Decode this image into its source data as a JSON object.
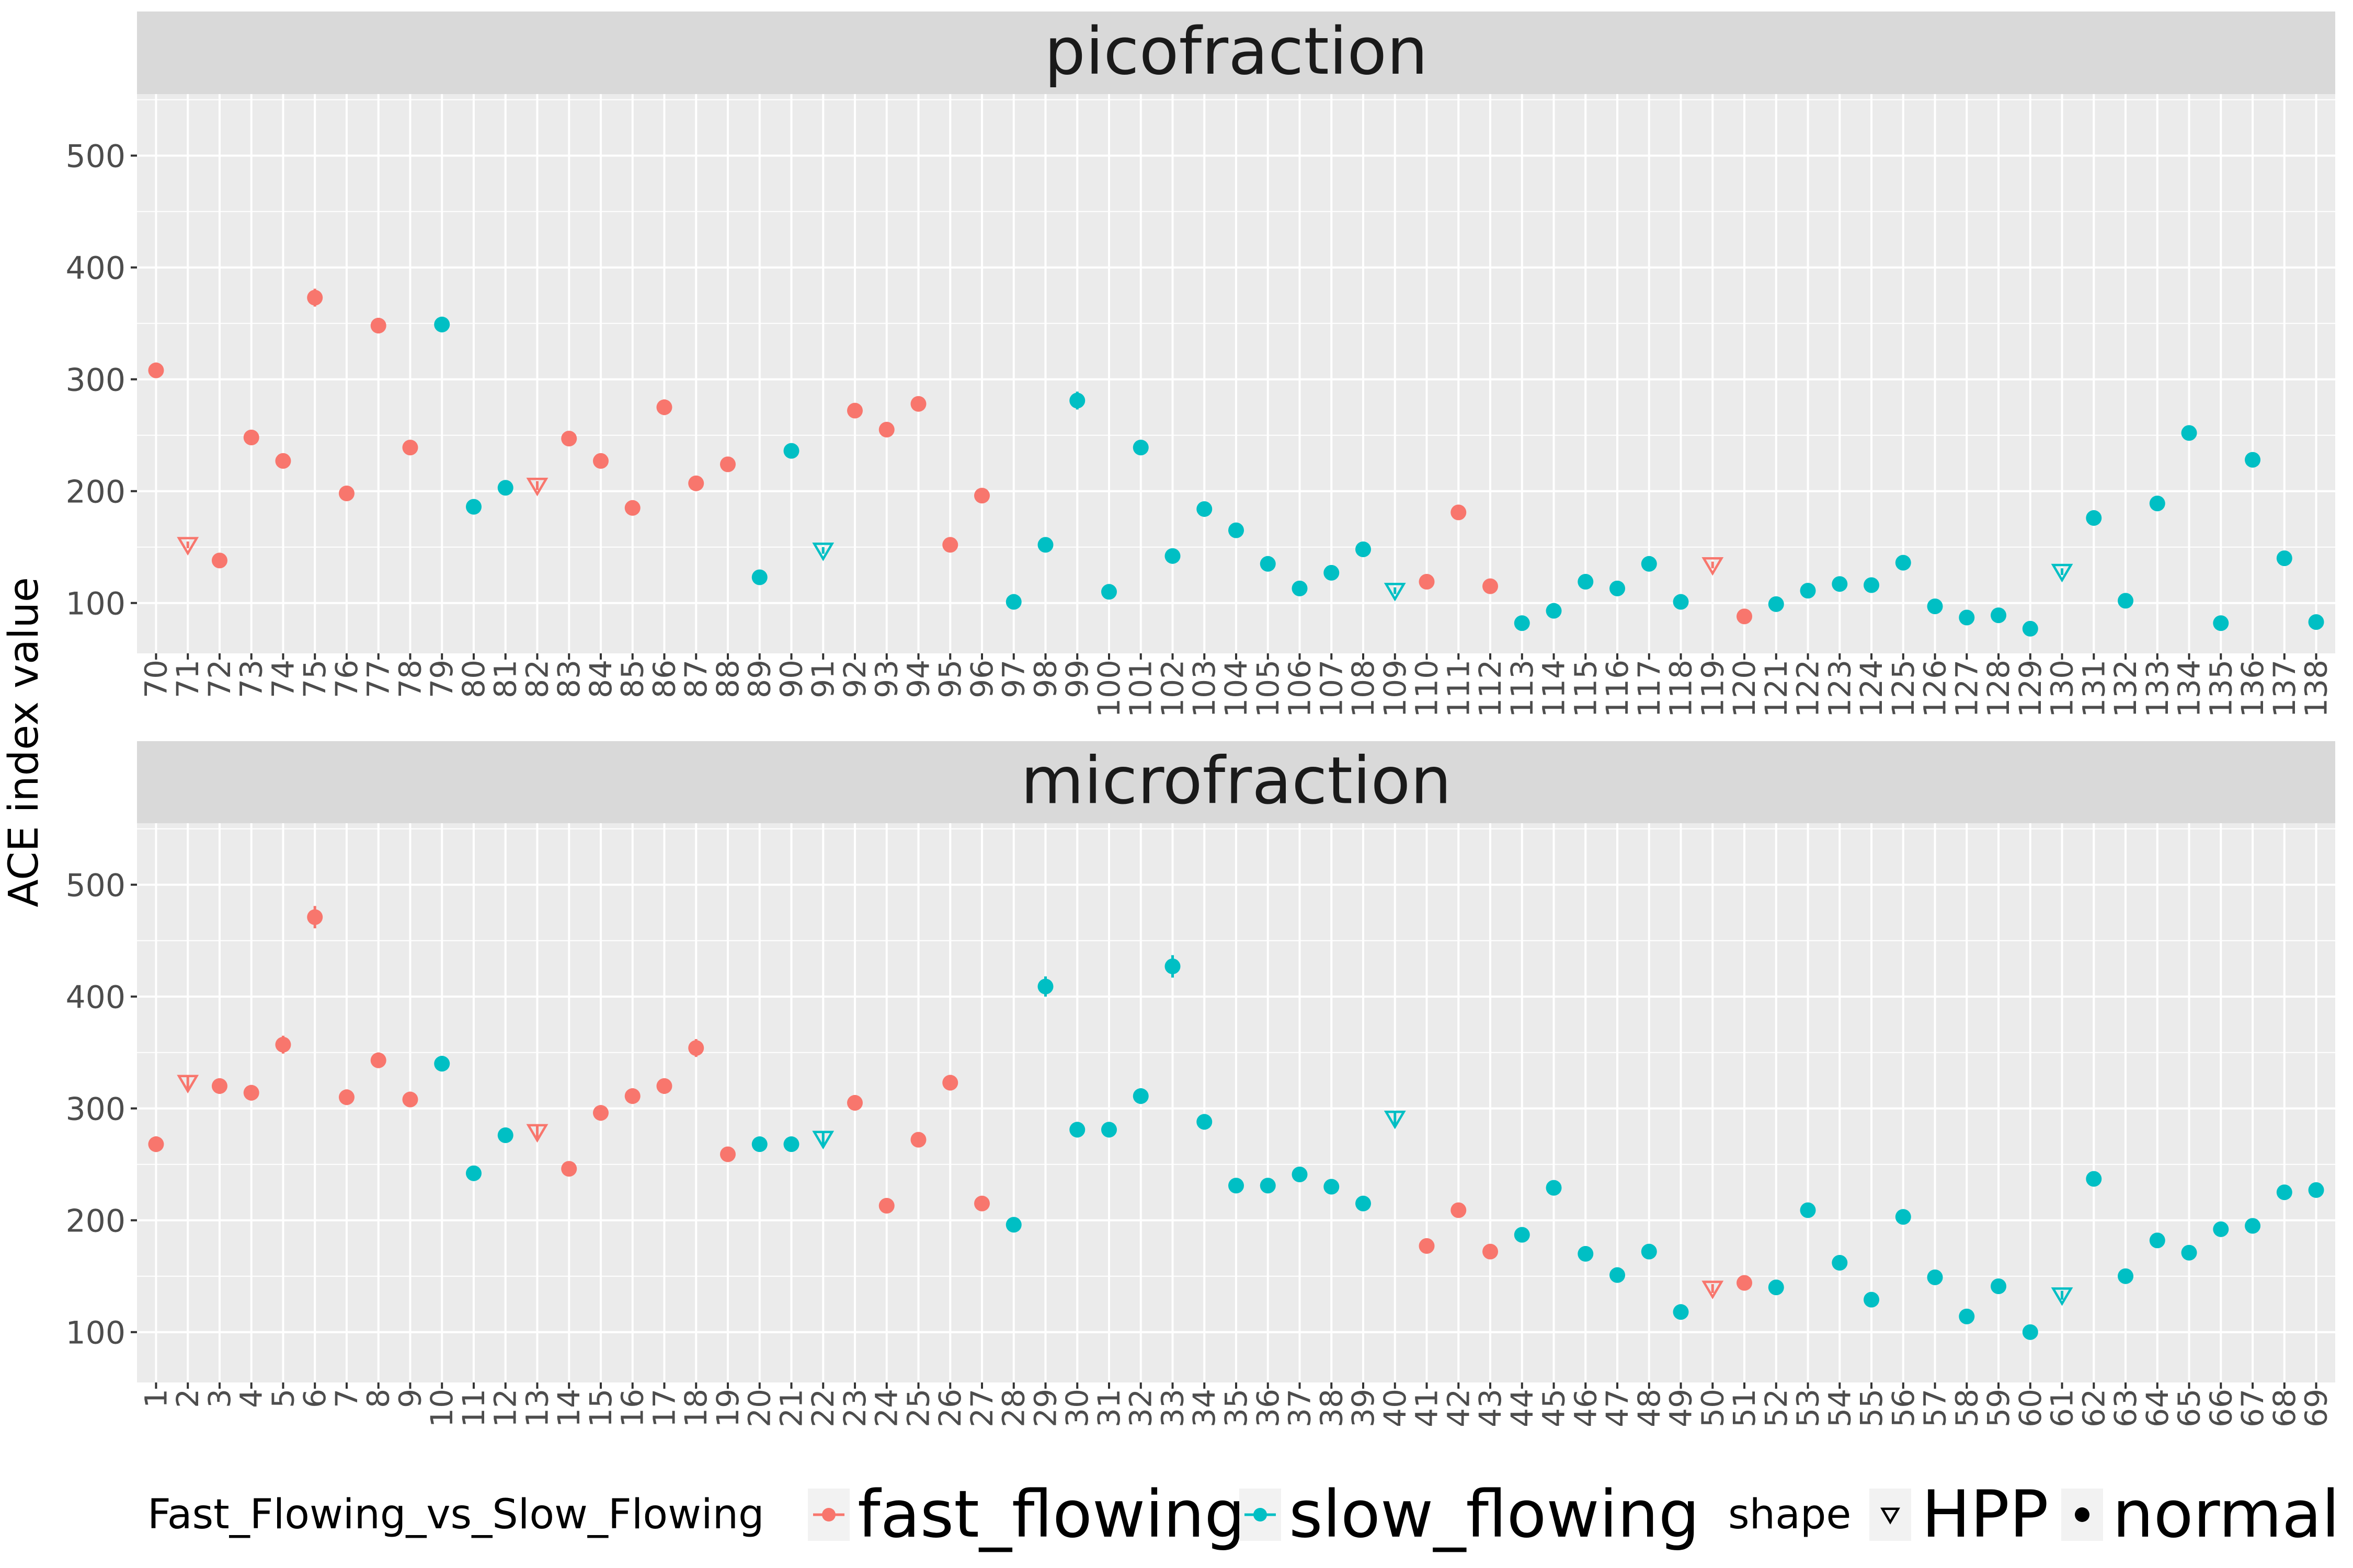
{
  "chart_data": {
    "type": "scatter",
    "ylabel": "ACE index value",
    "ylim": [
      55,
      555
    ],
    "yticks": [
      100,
      200,
      300,
      400,
      500
    ],
    "grid": true,
    "legend": {
      "position": "bottom",
      "color_title": "Fast_Flowing_vs_Slow_Flowing",
      "color_entries": [
        {
          "key": "fast_flowing",
          "label": "fast_flowing",
          "color": "#F8766D"
        },
        {
          "key": "slow_flowing",
          "label": "slow_flowing",
          "color": "#00BFC4"
        }
      ],
      "shape_title": "shape",
      "shape_entries": [
        {
          "key": "HPP",
          "label": "HPP",
          "marker": "triangle-down-open"
        },
        {
          "key": "normal",
          "label": "normal",
          "marker": "circle"
        }
      ]
    },
    "panels": [
      {
        "title": "picofraction",
        "categories": [
          "70",
          "71",
          "72",
          "73",
          "74",
          "75",
          "76",
          "77",
          "78",
          "79",
          "80",
          "81",
          "82",
          "83",
          "84",
          "85",
          "86",
          "87",
          "88",
          "89",
          "90",
          "91",
          "92",
          "93",
          "94",
          "95",
          "96",
          "97",
          "98",
          "99",
          "100",
          "101",
          "102",
          "103",
          "104",
          "105",
          "106",
          "107",
          "108",
          "109",
          "110",
          "111",
          "112",
          "113",
          "114",
          "115",
          "116",
          "117",
          "118",
          "119",
          "120",
          "121",
          "122",
          "123",
          "124",
          "125",
          "126",
          "127",
          "128",
          "129",
          "130",
          "131",
          "132",
          "133",
          "134",
          "135",
          "136",
          "137",
          "138"
        ],
        "values": [
          308,
          152,
          138,
          248,
          227,
          373,
          198,
          348,
          239,
          349,
          186,
          203,
          205,
          247,
          227,
          185,
          275,
          207,
          224,
          123,
          236,
          147,
          272,
          255,
          278,
          152,
          196,
          101,
          152,
          281,
          110,
          239,
          142,
          184,
          165,
          135,
          113,
          127,
          148,
          111,
          119,
          181,
          115,
          82,
          93,
          119,
          113,
          135,
          101,
          134,
          88,
          99,
          111,
          117,
          116,
          136,
          97,
          87,
          89,
          77,
          128,
          176,
          102,
          189,
          252,
          82,
          228,
          140,
          83
        ],
        "errors": [
          7,
          3,
          3,
          6,
          5,
          8,
          4,
          7,
          5,
          7,
          4,
          4,
          4,
          6,
          5,
          4,
          7,
          5,
          5,
          3,
          6,
          3,
          6,
          6,
          6,
          3,
          4,
          2,
          3,
          8,
          2,
          5,
          3,
          4,
          4,
          3,
          3,
          3,
          3,
          3,
          3,
          5,
          3,
          2,
          2,
          3,
          3,
          3,
          2,
          3,
          2,
          2,
          3,
          3,
          3,
          3,
          2,
          2,
          2,
          2,
          3,
          4,
          2,
          4,
          6,
          2,
          6,
          3,
          2
        ],
        "group": [
          "fast_flowing",
          "fast_flowing",
          "fast_flowing",
          "fast_flowing",
          "fast_flowing",
          "fast_flowing",
          "fast_flowing",
          "fast_flowing",
          "fast_flowing",
          "slow_flowing",
          "slow_flowing",
          "slow_flowing",
          "fast_flowing",
          "fast_flowing",
          "fast_flowing",
          "fast_flowing",
          "fast_flowing",
          "fast_flowing",
          "fast_flowing",
          "slow_flowing",
          "slow_flowing",
          "slow_flowing",
          "fast_flowing",
          "fast_flowing",
          "fast_flowing",
          "fast_flowing",
          "fast_flowing",
          "slow_flowing",
          "slow_flowing",
          "slow_flowing",
          "slow_flowing",
          "slow_flowing",
          "slow_flowing",
          "slow_flowing",
          "slow_flowing",
          "slow_flowing",
          "slow_flowing",
          "slow_flowing",
          "slow_flowing",
          "slow_flowing",
          "fast_flowing",
          "fast_flowing",
          "fast_flowing",
          "slow_flowing",
          "slow_flowing",
          "slow_flowing",
          "slow_flowing",
          "slow_flowing",
          "slow_flowing",
          "fast_flowing",
          "fast_flowing",
          "slow_flowing",
          "slow_flowing",
          "slow_flowing",
          "slow_flowing",
          "slow_flowing",
          "slow_flowing",
          "slow_flowing",
          "slow_flowing",
          "slow_flowing",
          "slow_flowing",
          "slow_flowing",
          "slow_flowing",
          "slow_flowing",
          "slow_flowing",
          "slow_flowing",
          "slow_flowing",
          "slow_flowing",
          "slow_flowing"
        ],
        "shape": [
          "normal",
          "HPP",
          "normal",
          "normal",
          "normal",
          "normal",
          "normal",
          "normal",
          "normal",
          "normal",
          "normal",
          "normal",
          "HPP",
          "normal",
          "normal",
          "normal",
          "normal",
          "normal",
          "normal",
          "normal",
          "normal",
          "HPP",
          "normal",
          "normal",
          "normal",
          "normal",
          "normal",
          "normal",
          "normal",
          "normal",
          "normal",
          "normal",
          "normal",
          "normal",
          "normal",
          "normal",
          "normal",
          "normal",
          "normal",
          "HPP",
          "normal",
          "normal",
          "normal",
          "normal",
          "normal",
          "normal",
          "normal",
          "normal",
          "normal",
          "HPP",
          "normal",
          "normal",
          "normal",
          "normal",
          "normal",
          "normal",
          "normal",
          "normal",
          "normal",
          "normal",
          "HPP",
          "normal",
          "normal",
          "normal",
          "normal",
          "normal",
          "normal",
          "normal",
          "normal"
        ]
      },
      {
        "title": "microfraction",
        "categories": [
          "1",
          "2",
          "3",
          "4",
          "5",
          "6",
          "7",
          "8",
          "9",
          "10",
          "11",
          "12",
          "13",
          "14",
          "15",
          "16",
          "17",
          "18",
          "19",
          "20",
          "21",
          "22",
          "23",
          "24",
          "25",
          "26",
          "27",
          "28",
          "29",
          "30",
          "31",
          "32",
          "33",
          "34",
          "35",
          "36",
          "37",
          "38",
          "39",
          "40",
          "41",
          "42",
          "43",
          "44",
          "45",
          "46",
          "47",
          "48",
          "49",
          "50",
          "51",
          "52",
          "53",
          "54",
          "55",
          "56",
          "57",
          "58",
          "59",
          "60",
          "61",
          "62",
          "63",
          "64",
          "65",
          "66",
          "67",
          "68",
          "69"
        ],
        "values": [
          268,
          323,
          320,
          314,
          357,
          471,
          310,
          343,
          308,
          340,
          242,
          276,
          279,
          246,
          296,
          311,
          320,
          354,
          259,
          268,
          268,
          273,
          305,
          213,
          272,
          323,
          215,
          196,
          409,
          281,
          281,
          311,
          427,
          288,
          231,
          231,
          241,
          230,
          215,
          291,
          177,
          209,
          172,
          187,
          229,
          170,
          151,
          172,
          118,
          139,
          144,
          140,
          209,
          162,
          129,
          203,
          149,
          114,
          141,
          100,
          133,
          237,
          150,
          182,
          171,
          192,
          195,
          225,
          227
        ],
        "errors": [
          7,
          6,
          7,
          7,
          8,
          10,
          7,
          7,
          7,
          7,
          6,
          6,
          6,
          6,
          7,
          7,
          7,
          8,
          6,
          6,
          6,
          6,
          7,
          5,
          6,
          7,
          5,
          5,
          9,
          7,
          7,
          7,
          10,
          7,
          5,
          5,
          6,
          5,
          5,
          6,
          4,
          5,
          4,
          5,
          6,
          4,
          4,
          4,
          3,
          4,
          4,
          3,
          5,
          4,
          3,
          5,
          4,
          3,
          4,
          3,
          4,
          6,
          4,
          4,
          4,
          5,
          5,
          6,
          6
        ],
        "group": [
          "fast_flowing",
          "fast_flowing",
          "fast_flowing",
          "fast_flowing",
          "fast_flowing",
          "fast_flowing",
          "fast_flowing",
          "fast_flowing",
          "fast_flowing",
          "slow_flowing",
          "slow_flowing",
          "slow_flowing",
          "fast_flowing",
          "fast_flowing",
          "fast_flowing",
          "fast_flowing",
          "fast_flowing",
          "fast_flowing",
          "fast_flowing",
          "slow_flowing",
          "slow_flowing",
          "slow_flowing",
          "fast_flowing",
          "fast_flowing",
          "fast_flowing",
          "fast_flowing",
          "fast_flowing",
          "slow_flowing",
          "slow_flowing",
          "slow_flowing",
          "slow_flowing",
          "slow_flowing",
          "slow_flowing",
          "slow_flowing",
          "slow_flowing",
          "slow_flowing",
          "slow_flowing",
          "slow_flowing",
          "slow_flowing",
          "slow_flowing",
          "fast_flowing",
          "fast_flowing",
          "fast_flowing",
          "slow_flowing",
          "slow_flowing",
          "slow_flowing",
          "slow_flowing",
          "slow_flowing",
          "slow_flowing",
          "fast_flowing",
          "fast_flowing",
          "slow_flowing",
          "slow_flowing",
          "slow_flowing",
          "slow_flowing",
          "slow_flowing",
          "slow_flowing",
          "slow_flowing",
          "slow_flowing",
          "slow_flowing",
          "slow_flowing",
          "slow_flowing",
          "slow_flowing",
          "slow_flowing",
          "slow_flowing",
          "slow_flowing",
          "slow_flowing",
          "slow_flowing",
          "slow_flowing"
        ],
        "shape": [
          "normal",
          "HPP",
          "normal",
          "normal",
          "normal",
          "normal",
          "normal",
          "normal",
          "normal",
          "normal",
          "normal",
          "normal",
          "HPP",
          "normal",
          "normal",
          "normal",
          "normal",
          "normal",
          "normal",
          "normal",
          "normal",
          "HPP",
          "normal",
          "normal",
          "normal",
          "normal",
          "normal",
          "normal",
          "normal",
          "normal",
          "normal",
          "normal",
          "normal",
          "normal",
          "normal",
          "normal",
          "normal",
          "normal",
          "normal",
          "HPP",
          "normal",
          "normal",
          "normal",
          "normal",
          "normal",
          "normal",
          "normal",
          "normal",
          "normal",
          "HPP",
          "normal",
          "normal",
          "normal",
          "normal",
          "normal",
          "normal",
          "normal",
          "normal",
          "normal",
          "normal",
          "HPP",
          "normal",
          "normal",
          "normal",
          "normal",
          "normal",
          "normal",
          "normal",
          "normal"
        ]
      }
    ]
  }
}
